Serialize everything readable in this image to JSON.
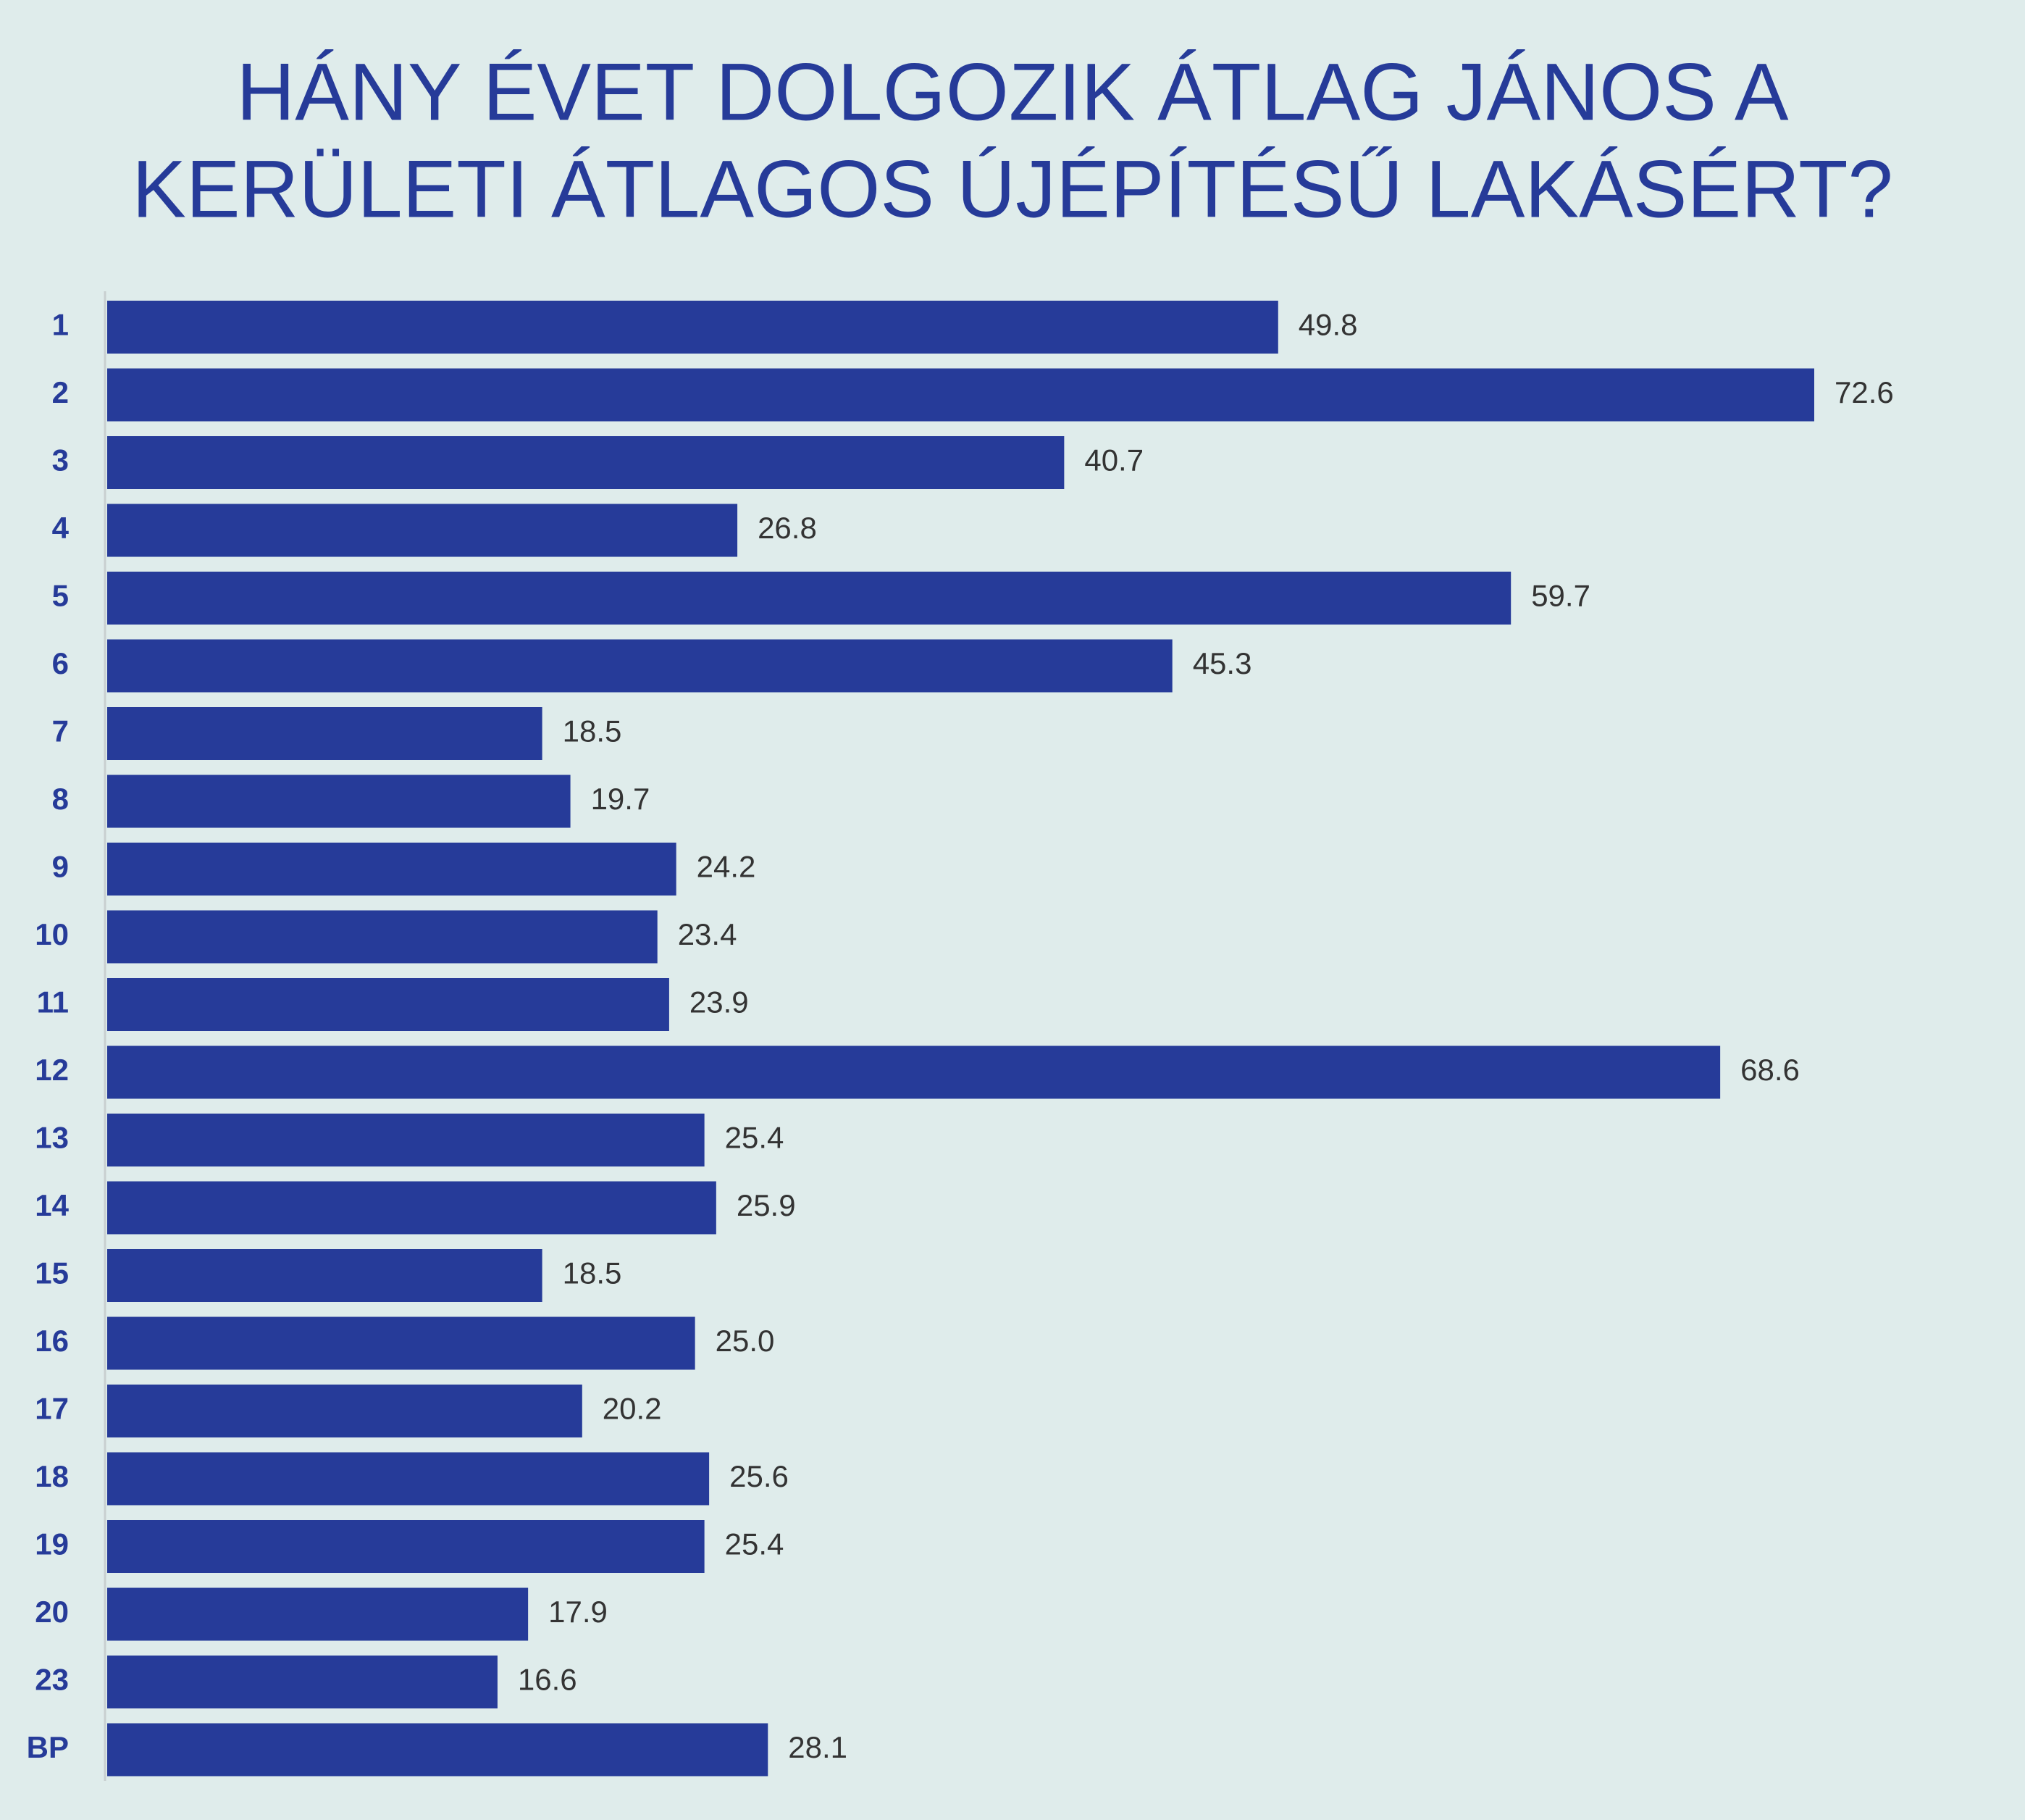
{
  "chart_data": {
    "type": "bar",
    "orientation": "horizontal",
    "title": [
      "HÁNY ÉVET DOLGOZIK ÁTLAG JÁNOS A",
      "KERÜLETI ÁTLAGOS ÚJÉPÍTÉSŰ LAKÁSÉRT?"
    ],
    "categories": [
      "1",
      "2",
      "3",
      "4",
      "5",
      "6",
      "7",
      "8",
      "9",
      "10",
      "11",
      "12",
      "13",
      "14",
      "15",
      "16",
      "17",
      "18",
      "19",
      "20",
      "23",
      "BP"
    ],
    "values": [
      49.8,
      72.6,
      40.7,
      26.8,
      59.7,
      45.3,
      18.5,
      19.7,
      24.2,
      23.4,
      23.9,
      68.6,
      25.4,
      25.9,
      18.5,
      25.0,
      20.2,
      25.6,
      25.4,
      17.9,
      16.6,
      28.1
    ],
    "value_labels": [
      "49.8",
      "72.6",
      "40.7",
      "26.8",
      "59.7",
      "45.3",
      "18.5",
      "19.7",
      "24.2",
      "23.4",
      "23.9",
      "68.6",
      "25.4",
      "25.9",
      "18.5",
      "25.0",
      "20.2",
      "25.6",
      "25.4",
      "17.9",
      "16.6",
      "28.1"
    ],
    "color": "#263b99"
  }
}
